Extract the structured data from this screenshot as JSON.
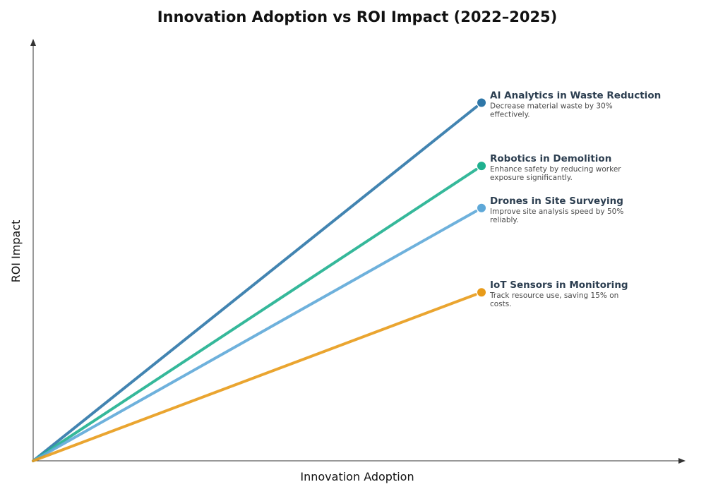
{
  "chart_data": {
    "type": "line",
    "title": "Innovation Adoption vs ROI Impact (2022–2025)",
    "xlabel": "Innovation Adoption",
    "ylabel": "ROI Impact",
    "xlim": [
      0,
      1
    ],
    "ylim": [
      0,
      1
    ],
    "grid": false,
    "legend": "annotations at line ends",
    "series": [
      {
        "name": "AI Analytics in Waste Reduction",
        "description_lines": [
          "Decrease material waste by 30%",
          "effectively."
        ],
        "color": "#2e77a8",
        "x": [
          0,
          0.688
        ],
        "y": [
          0,
          0.85
        ]
      },
      {
        "name": "Robotics in Demolition",
        "description_lines": [
          "Enhance safety by reducing worker",
          "exposure significantly."
        ],
        "color": "#1fb08f",
        "x": [
          0,
          0.688
        ],
        "y": [
          0,
          0.7
        ]
      },
      {
        "name": "Drones in Site Surveying",
        "description_lines": [
          "Improve site analysis speed by 50%",
          "reliably."
        ],
        "color": "#5ea8d8",
        "x": [
          0,
          0.688
        ],
        "y": [
          0,
          0.6
        ]
      },
      {
        "name": "IoT Sensors in Monitoring",
        "description_lines": [
          "Track resource use, saving 15% on",
          "costs."
        ],
        "color": "#e89b1a",
        "x": [
          0,
          0.688
        ],
        "y": [
          0,
          0.4
        ]
      }
    ]
  }
}
